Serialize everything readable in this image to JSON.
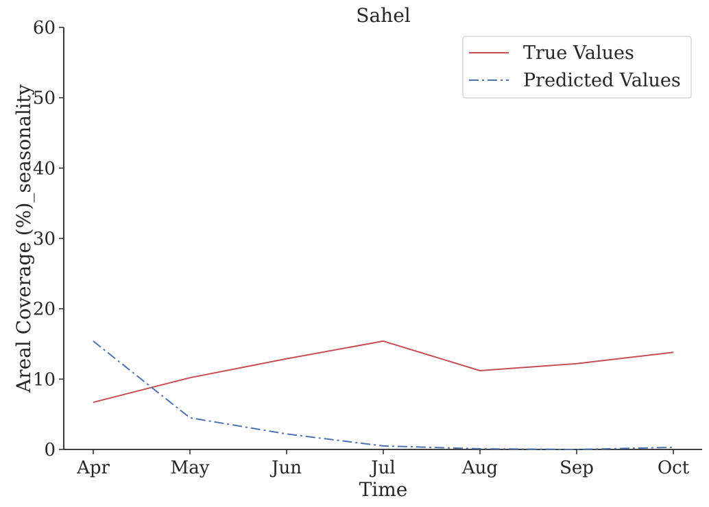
{
  "chart_data": {
    "type": "line",
    "title": "Sahel",
    "xlabel": "Time",
    "ylabel": "Areal Coverage (%)_seasonality",
    "categories": [
      "Apr",
      "May",
      "Jun",
      "Jul",
      "Aug",
      "Sep",
      "Oct"
    ],
    "ylim": [
      0,
      60
    ],
    "yticks": [
      0,
      10,
      20,
      30,
      40,
      50,
      60
    ],
    "grid": false,
    "legend_position": "top-right",
    "series": [
      {
        "name": "True Values",
        "color": "#c44e52",
        "style": "solid",
        "values": [
          6.7,
          10.2,
          12.9,
          15.4,
          11.2,
          12.2,
          13.8
        ]
      },
      {
        "name": "Predicted Values",
        "color": "#4c72b0",
        "style": "dashdot",
        "values": [
          15.4,
          4.5,
          2.2,
          0.5,
          0.1,
          0.0,
          0.3
        ]
      }
    ]
  }
}
